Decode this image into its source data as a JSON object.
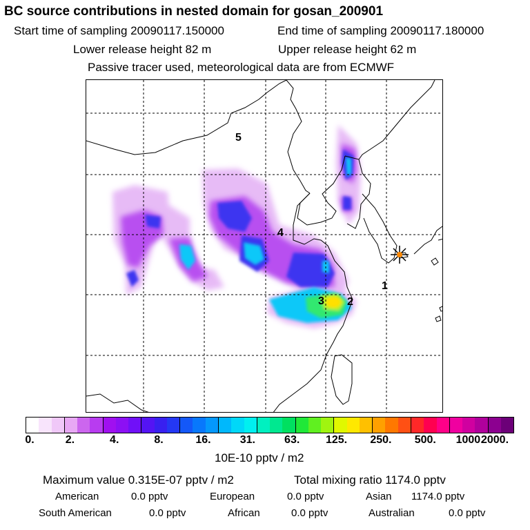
{
  "header": {
    "title": "BC  source contributions in nested domain for gosan_200901",
    "start_time": "Start time of sampling 20090117.150000",
    "end_time": "End time of sampling 20090117.180000",
    "lower_release": "Lower release height   82 m",
    "upper_release": "Upper release height   62 m",
    "tracer_note": "Passive tracer used, meteorological data are from ECMWF"
  },
  "map": {
    "region_labels": [
      "5",
      "4",
      "3",
      "2",
      "1"
    ],
    "receptor_icon": "star-burst-icon",
    "receptor_color": "#ff8800"
  },
  "colorbar": {
    "ticks": [
      "0.",
      "2.",
      "4.",
      "8.",
      "16.",
      "31.",
      "63.",
      "125.",
      "250.",
      "500.",
      "1000.",
      "2000."
    ],
    "colors": [
      "#ffffff",
      "#f8e4fc",
      "#f0c8f8",
      "#e8a8f4",
      "#cc66ee",
      "#b83cf0",
      "#a010f0",
      "#8c10f4",
      "#7010f8",
      "#5414f4",
      "#3820f0",
      "#2438f4",
      "#1458f8",
      "#0878fc",
      "#0498fc",
      "#00b8fc",
      "#00d8f8",
      "#00f0f0",
      "#00f0c0",
      "#00e890",
      "#00e060",
      "#20e838",
      "#60f020",
      "#a0f410",
      "#e0f800",
      "#ffe800",
      "#ffc000",
      "#ffa000",
      "#ff7800",
      "#ff5014",
      "#ff2828",
      "#ff0050",
      "#ff0088",
      "#f000a0",
      "#d000a0",
      "#b0009c",
      "#8c0090",
      "#6c0078"
    ],
    "units": "10E-10 pptv / m2"
  },
  "stats": {
    "maximum": "Maximum value  0.315E-07 pptv / m2",
    "total": "Total mixing ratio     1174.0 pptv",
    "american_label": "American",
    "american_value": "0.0 pptv",
    "european_label": "European",
    "european_value": "0.0 pptv",
    "asian_label": "Asian",
    "asian_value": "1174.0 pptv",
    "south_american_label": "South American",
    "south_american_value": "0.0 pptv",
    "african_label": "African",
    "african_value": "0.0 pptv",
    "australian_label": "Australian",
    "australian_value": "0.0 pptv"
  }
}
